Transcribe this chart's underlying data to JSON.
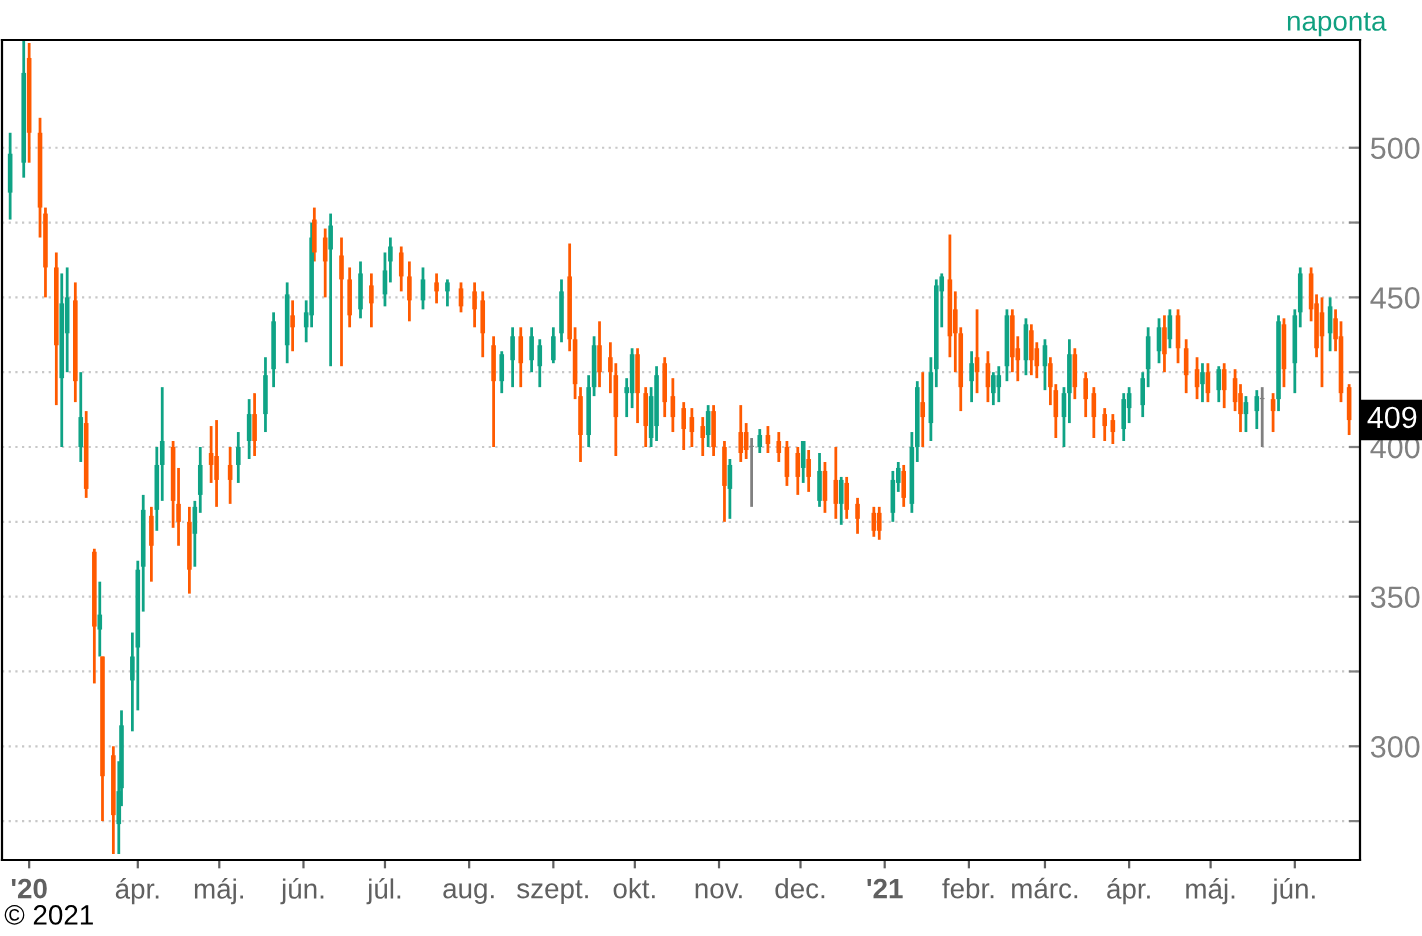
{
  "chart_data": {
    "type": "candlestick",
    "subtitle": "naponta",
    "annotations": [
      "© 2021",
      {
        "text": "409",
        "x": "2021-06-21",
        "y": 409
      }
    ],
    "x": [
      "2020-02-14",
      "2020-02-19",
      "2020-02-21",
      "2020-02-25",
      "2020-02-27",
      "2020-03-02",
      "2020-03-04",
      "2020-03-06",
      "2020-03-09",
      "2020-03-11",
      "2020-03-13",
      "2020-03-16",
      "2020-03-18",
      "2020-03-19",
      "2020-03-23",
      "2020-03-25",
      "2020-03-26",
      "2020-03-30",
      "2020-04-01",
      "2020-04-03",
      "2020-04-06",
      "2020-04-08",
      "2020-04-10",
      "2020-04-14",
      "2020-04-16",
      "2020-04-20",
      "2020-04-22",
      "2020-04-24",
      "2020-04-28",
      "2020-04-30",
      "2020-05-05",
      "2020-05-08",
      "2020-05-12",
      "2020-05-14",
      "2020-05-18",
      "2020-05-21",
      "2020-05-26",
      "2020-05-28",
      "2020-06-02",
      "2020-06-04",
      "2020-06-05",
      "2020-06-09",
      "2020-06-11",
      "2020-06-15",
      "2020-06-18",
      "2020-06-22",
      "2020-06-26",
      "2020-07-01",
      "2020-07-03",
      "2020-07-07",
      "2020-07-10",
      "2020-07-15",
      "2020-07-20",
      "2020-07-24",
      "2020-07-29",
      "2020-08-03",
      "2020-08-06",
      "2020-08-10",
      "2020-08-13",
      "2020-08-17",
      "2020-08-20",
      "2020-08-24",
      "2020-08-27",
      "2020-09-01",
      "2020-09-04",
      "2020-09-07",
      "2020-09-09",
      "2020-09-11",
      "2020-09-14",
      "2020-09-16",
      "2020-09-18",
      "2020-09-22",
      "2020-09-24",
      "2020-09-28",
      "2020-09-30",
      "2020-10-02",
      "2020-10-05",
      "2020-10-07",
      "2020-10-09",
      "2020-10-12",
      "2020-10-15",
      "2020-10-19",
      "2020-10-22",
      "2020-10-26",
      "2020-10-28",
      "2020-10-30",
      "2020-11-03",
      "2020-11-05",
      "2020-11-09",
      "2020-11-11",
      "2020-11-13",
      "2020-11-16",
      "2020-11-19",
      "2020-11-23",
      "2020-11-26",
      "2020-11-30",
      "2020-12-02",
      "2020-12-04",
      "2020-12-08",
      "2020-12-10",
      "2020-12-14",
      "2020-12-16",
      "2020-12-18",
      "2020-12-22",
      "2020-12-28",
      "2020-12-30",
      "2021-01-04",
      "2021-01-06",
      "2021-01-08",
      "2021-01-11",
      "2021-01-13",
      "2021-01-15",
      "2021-01-18",
      "2021-01-20",
      "2021-01-22",
      "2021-01-25",
      "2021-01-27",
      "2021-01-29",
      "2021-02-02",
      "2021-02-04",
      "2021-02-08",
      "2021-02-10",
      "2021-02-12",
      "2021-02-15",
      "2021-02-17",
      "2021-02-19",
      "2021-02-22",
      "2021-02-24",
      "2021-02-26",
      "2021-03-01",
      "2021-03-03",
      "2021-03-05",
      "2021-03-08",
      "2021-03-10",
      "2021-03-12",
      "2021-03-16",
      "2021-03-19",
      "2021-03-23",
      "2021-03-26",
      "2021-03-30",
      "2021-04-01",
      "2021-04-06",
      "2021-04-08",
      "2021-04-12",
      "2021-04-14",
      "2021-04-16",
      "2021-04-19",
      "2021-04-22",
      "2021-04-26",
      "2021-04-28",
      "2021-04-30",
      "2021-05-04",
      "2021-05-06",
      "2021-05-10",
      "2021-05-12",
      "2021-05-14",
      "2021-05-18",
      "2021-05-20",
      "2021-05-24",
      "2021-05-26",
      "2021-05-28",
      "2021-06-01",
      "2021-06-03",
      "2021-06-07",
      "2021-06-09",
      "2021-06-11",
      "2021-06-14",
      "2021-06-16",
      "2021-06-18",
      "2021-06-21"
    ],
    "ohlc": [
      [
        485,
        505,
        476,
        498
      ],
      [
        495,
        536,
        490,
        525
      ],
      [
        530,
        535,
        495,
        505
      ],
      [
        505,
        510,
        470,
        480
      ],
      [
        478,
        480,
        450,
        460
      ],
      [
        460,
        465,
        414,
        434
      ],
      [
        423,
        458,
        400,
        448
      ],
      [
        438,
        460,
        425,
        450
      ],
      [
        449,
        455,
        415,
        422
      ],
      [
        400,
        425,
        395,
        410
      ],
      [
        408,
        412,
        383,
        386
      ],
      [
        365,
        366,
        321,
        340
      ],
      [
        339,
        355,
        330,
        344
      ],
      [
        330,
        330,
        275,
        290
      ],
      [
        297,
        300,
        264,
        277
      ],
      [
        274,
        295,
        264,
        285
      ],
      [
        286,
        312,
        280,
        307
      ],
      [
        322,
        338,
        305,
        330
      ],
      [
        333,
        362,
        312,
        359
      ],
      [
        360,
        384,
        345,
        379
      ],
      [
        377,
        380,
        355,
        367
      ],
      [
        379,
        400,
        372,
        394
      ],
      [
        394,
        420,
        382,
        402
      ],
      [
        400,
        402,
        373,
        382
      ],
      [
        381,
        393,
        367,
        375
      ],
      [
        375,
        380,
        351,
        359
      ],
      [
        371,
        382,
        360,
        380
      ],
      [
        384,
        400,
        378,
        394
      ],
      [
        398,
        407,
        388,
        394
      ],
      [
        397,
        409,
        380,
        389
      ],
      [
        394,
        400,
        381,
        389
      ],
      [
        394,
        405,
        388,
        400
      ],
      [
        402,
        416,
        396,
        411
      ],
      [
        411,
        418,
        397,
        402
      ],
      [
        411,
        430,
        405,
        424
      ],
      [
        426,
        445,
        420,
        442
      ],
      [
        434,
        455,
        428,
        451
      ],
      [
        444,
        449,
        432,
        440
      ],
      [
        440,
        449,
        435,
        445
      ],
      [
        444,
        475,
        440,
        470
      ],
      [
        476,
        480,
        462,
        465
      ],
      [
        470,
        473,
        450,
        462
      ],
      [
        466,
        478,
        427,
        474
      ],
      [
        464,
        470,
        427,
        456
      ],
      [
        456,
        460,
        440,
        444
      ],
      [
        446,
        462,
        443,
        458
      ],
      [
        454,
        458,
        440,
        448
      ],
      [
        451,
        465,
        447,
        459
      ],
      [
        462,
        470,
        455,
        467
      ],
      [
        465,
        467,
        452,
        457
      ],
      [
        457,
        462,
        442,
        449
      ],
      [
        449,
        460,
        446,
        456
      ],
      [
        455,
        458,
        448,
        452
      ],
      [
        452,
        456,
        447,
        455
      ],
      [
        453,
        455,
        445,
        447
      ],
      [
        452,
        455,
        440,
        446
      ],
      [
        449,
        452,
        430,
        438
      ],
      [
        434,
        437,
        400,
        422
      ],
      [
        422,
        432,
        418,
        431
      ],
      [
        429,
        440,
        420,
        437
      ],
      [
        437,
        440,
        420,
        428
      ],
      [
        429,
        440,
        425,
        437
      ],
      [
        427,
        436,
        420,
        434
      ],
      [
        429,
        440,
        428,
        437
      ],
      [
        438,
        456,
        435,
        452
      ],
      [
        457,
        468,
        432,
        436
      ],
      [
        436,
        440,
        416,
        421
      ],
      [
        417,
        420,
        395,
        404
      ],
      [
        404,
        424,
        400,
        420
      ],
      [
        420,
        437,
        417,
        434
      ],
      [
        434,
        442,
        420,
        425
      ],
      [
        430,
        435,
        418,
        425
      ],
      [
        424,
        428,
        397,
        410
      ],
      [
        418,
        423,
        410,
        420
      ],
      [
        418,
        433,
        413,
        431
      ],
      [
        431,
        433,
        408,
        418
      ],
      [
        418,
        420,
        400,
        407
      ],
      [
        403,
        420,
        400,
        417
      ],
      [
        407,
        427,
        402,
        424
      ],
      [
        428,
        430,
        410,
        415
      ],
      [
        417,
        423,
        405,
        410
      ],
      [
        413,
        415,
        399,
        406
      ],
      [
        410,
        413,
        400,
        405
      ],
      [
        407,
        410,
        397,
        403
      ],
      [
        404,
        414,
        400,
        412
      ],
      [
        412,
        414,
        397,
        400
      ],
      [
        400,
        402,
        375,
        387
      ],
      [
        386,
        396,
        376,
        394
      ],
      [
        405,
        414,
        395,
        398
      ],
      [
        405,
        408,
        396,
        399
      ],
      [
        400,
        403,
        380,
        400
      ],
      [
        400,
        406,
        398,
        404
      ],
      [
        404,
        407,
        398,
        401
      ],
      [
        402,
        405,
        395,
        398
      ],
      [
        400,
        402,
        387,
        390
      ],
      [
        398,
        400,
        384,
        390
      ],
      [
        393,
        402,
        388,
        402
      ],
      [
        396,
        399,
        385,
        390
      ],
      [
        382,
        398,
        380,
        392
      ],
      [
        392,
        395,
        378,
        382
      ],
      [
        389,
        400,
        376,
        381
      ],
      [
        381,
        390,
        374,
        389
      ],
      [
        388,
        390,
        376,
        379
      ],
      [
        381,
        383,
        371,
        376
      ],
      [
        378,
        380,
        370,
        372
      ],
      [
        378,
        380,
        369,
        372
      ],
      [
        378,
        392,
        375,
        389
      ],
      [
        388,
        395,
        385,
        393
      ],
      [
        392,
        394,
        380,
        383
      ],
      [
        381,
        405,
        378,
        400
      ],
      [
        400,
        422,
        395,
        420
      ],
      [
        415,
        425,
        400,
        410
      ],
      [
        408,
        430,
        402,
        425
      ],
      [
        426,
        456,
        420,
        454
      ],
      [
        452,
        458,
        440,
        457
      ],
      [
        456,
        471,
        430,
        437
      ],
      [
        446,
        452,
        425,
        438
      ],
      [
        438,
        440,
        412,
        420
      ],
      [
        422,
        432,
        415,
        428
      ],
      [
        430,
        446,
        418,
        425
      ],
      [
        428,
        432,
        415,
        420
      ],
      [
        418,
        425,
        414,
        424
      ],
      [
        420,
        427,
        415,
        424
      ],
      [
        427,
        446,
        422,
        444
      ],
      [
        444,
        446,
        425,
        430
      ],
      [
        433,
        437,
        422,
        429
      ],
      [
        429,
        443,
        424,
        441
      ],
      [
        439,
        441,
        424,
        429
      ],
      [
        433,
        435,
        423,
        427
      ],
      [
        427,
        436,
        419,
        434
      ],
      [
        428,
        430,
        414,
        420
      ],
      [
        419,
        421,
        403,
        410
      ],
      [
        410,
        420,
        400,
        418
      ],
      [
        418,
        436,
        408,
        431
      ],
      [
        431,
        433,
        416,
        420
      ],
      [
        423,
        425,
        410,
        416
      ],
      [
        418,
        420,
        403,
        410
      ],
      [
        411,
        413,
        402,
        407
      ],
      [
        409,
        411,
        401,
        405
      ],
      [
        406,
        418,
        402,
        416
      ],
      [
        413,
        420,
        408,
        418
      ],
      [
        414,
        425,
        410,
        423
      ],
      [
        426,
        440,
        420,
        437
      ],
      [
        432,
        443,
        428,
        440
      ],
      [
        440,
        444,
        425,
        431
      ],
      [
        436,
        446,
        433,
        444
      ],
      [
        444,
        446,
        428,
        433
      ],
      [
        433,
        436,
        418,
        424
      ],
      [
        426,
        430,
        416,
        420
      ],
      [
        421,
        428,
        415,
        425
      ],
      [
        425,
        428,
        415,
        418
      ],
      [
        419,
        427,
        415,
        426
      ],
      [
        426,
        428,
        413,
        419
      ],
      [
        423,
        426,
        412,
        415
      ],
      [
        418,
        421,
        405,
        411
      ],
      [
        411,
        417,
        405,
        415
      ],
      [
        412,
        419,
        406,
        417
      ],
      [
        416,
        420,
        400,
        416
      ],
      [
        416,
        418,
        405,
        412
      ],
      [
        416,
        444,
        412,
        442
      ],
      [
        441,
        443,
        420,
        426
      ],
      [
        428,
        446,
        418,
        444
      ],
      [
        445,
        460,
        440,
        458
      ],
      [
        458,
        460,
        442,
        446
      ],
      [
        448,
        451,
        430,
        433
      ],
      [
        445,
        450,
        420,
        437
      ],
      [
        438,
        450,
        432,
        447
      ],
      [
        443,
        446,
        432,
        436
      ],
      [
        437,
        442,
        415,
        418
      ],
      [
        420,
        421,
        404,
        409
      ]
    ],
    "xlim": [
      "2020-02-11",
      "2021-06-25"
    ],
    "xticks": [
      {
        "value": "2020-02-21",
        "label": "'20"
      },
      {
        "value": "2020-04-01",
        "label": "ápr."
      },
      {
        "value": "2020-05-01",
        "label": "máj."
      },
      {
        "value": "2020-06-01",
        "label": "jún."
      },
      {
        "value": "2020-07-01",
        "label": "júl."
      },
      {
        "value": "2020-08-01",
        "label": "aug."
      },
      {
        "value": "2020-09-01",
        "label": "szept."
      },
      {
        "value": "2020-10-01",
        "label": "okt."
      },
      {
        "value": "2020-11-01",
        "label": "nov."
      },
      {
        "value": "2020-12-01",
        "label": "dec."
      },
      {
        "value": "2021-01-01",
        "label": "'21"
      },
      {
        "value": "2021-02-01",
        "label": "febr."
      },
      {
        "value": "2021-03-01",
        "label": "márc."
      },
      {
        "value": "2021-04-01",
        "label": "ápr."
      },
      {
        "value": "2021-05-01",
        "label": "máj."
      },
      {
        "value": "2021-06-01",
        "label": "jún."
      }
    ],
    "ylim": [
      262,
      536
    ],
    "yticks": [
      {
        "value": 275,
        "label": null
      },
      300,
      {
        "value": 325,
        "label": null
      },
      350,
      {
        "value": 375,
        "label": null
      },
      400,
      {
        "value": 425,
        "label": null
      },
      450,
      {
        "value": 475,
        "label": null
      },
      500
    ],
    "grid": "y"
  }
}
